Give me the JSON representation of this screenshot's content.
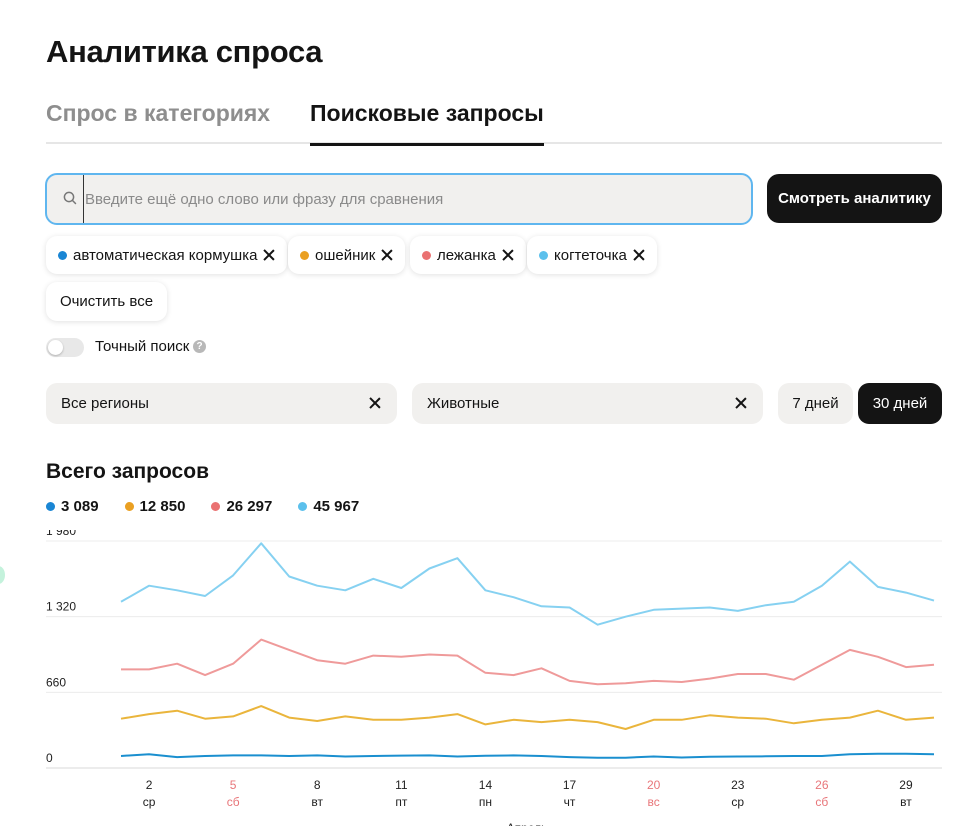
{
  "header": {
    "title": "Аналитика спроса"
  },
  "tabs": [
    {
      "label": "Спрос в категориях",
      "active": false
    },
    {
      "label": "Поисковые запросы",
      "active": true
    }
  ],
  "search": {
    "placeholder": "Введите ещё одно слово или фразу для сравнения",
    "value": "",
    "button_label": "Смотреть аналитику",
    "icon": "search-icon"
  },
  "chips": [
    {
      "label": "автоматическая кормушка",
      "color": "#1a86d4"
    },
    {
      "label": "ошейник",
      "color": "#eaa022"
    },
    {
      "label": "лежанка",
      "color": "#ea7272"
    },
    {
      "label": "когтеточка",
      "color": "#5cc0ec"
    }
  ],
  "clear_label": "Очистить все",
  "exact_search": {
    "label": "Точный поиск",
    "enabled": false,
    "help": "?"
  },
  "filters": {
    "region": "Все регионы",
    "category": "Животные"
  },
  "periods": [
    {
      "label": "7 дней",
      "active": false
    },
    {
      "label": "30 дней",
      "active": true
    }
  ],
  "totals": {
    "title": "Всего запросов",
    "items": [
      {
        "value": "3 089",
        "color": "#1a86d4"
      },
      {
        "value": "12 850",
        "color": "#eaa022"
      },
      {
        "value": "26 297",
        "color": "#ea7272"
      },
      {
        "value": "45 967",
        "color": "#5cc0ec"
      }
    ]
  },
  "chart_data": {
    "type": "line",
    "ylim": [
      0,
      1980
    ],
    "yticks": [
      "1 980",
      "1 320",
      "660",
      "0"
    ],
    "ytick_values": [
      1980,
      1320,
      660,
      0
    ],
    "x": [
      "1",
      "2",
      "3",
      "4",
      "5",
      "6",
      "7",
      "8",
      "9",
      "10",
      "11",
      "12",
      "13",
      "14",
      "15",
      "16",
      "17",
      "18",
      "19",
      "20",
      "21",
      "22",
      "23",
      "24",
      "25",
      "26",
      "27",
      "28",
      "29",
      "30"
    ],
    "xticks": [
      {
        "day": "2",
        "weekday": "ср",
        "weekend": false
      },
      {
        "day": "5",
        "weekday": "сб",
        "weekend": true
      },
      {
        "day": "8",
        "weekday": "вт",
        "weekend": false
      },
      {
        "day": "11",
        "weekday": "пт",
        "weekend": false
      },
      {
        "day": "14",
        "weekday": "пн",
        "weekend": false
      },
      {
        "day": "17",
        "weekday": "чт",
        "weekend": false
      },
      {
        "day": "20",
        "weekday": "вс",
        "weekend": true
      },
      {
        "day": "23",
        "weekday": "ср",
        "weekend": false
      },
      {
        "day": "26",
        "weekday": "сб",
        "weekend": true
      },
      {
        "day": "29",
        "weekday": "вт",
        "weekend": false
      }
    ],
    "xlabel": "Апрель",
    "weekend_color": "#e8767a",
    "grid": true,
    "series": [
      {
        "name": "когтеточка",
        "color": "#86d1f1",
        "values": [
          1450,
          1590,
          1550,
          1500,
          1680,
          1960,
          1670,
          1590,
          1550,
          1650,
          1570,
          1740,
          1830,
          1550,
          1490,
          1410,
          1400,
          1250,
          1320,
          1380,
          1390,
          1400,
          1370,
          1420,
          1450,
          1590,
          1800,
          1580,
          1530,
          1460
        ]
      },
      {
        "name": "лежанка",
        "color": "#ef9a9a",
        "values": [
          860,
          860,
          910,
          810,
          910,
          1120,
          1030,
          940,
          910,
          980,
          970,
          990,
          980,
          830,
          810,
          870,
          760,
          730,
          740,
          760,
          750,
          780,
          820,
          820,
          770,
          900,
          1030,
          970,
          880,
          900
        ]
      },
      {
        "name": "ошейник",
        "color": "#eab53c",
        "values": [
          430,
          470,
          500,
          430,
          450,
          540,
          440,
          410,
          450,
          420,
          420,
          440,
          470,
          380,
          420,
          400,
          420,
          400,
          340,
          420,
          420,
          460,
          440,
          430,
          390,
          420,
          440,
          500,
          420,
          440
        ]
      },
      {
        "name": "автоматическая кормушка",
        "color": "#1a8fcf",
        "values": [
          105,
          120,
          95,
          105,
          110,
          110,
          105,
          110,
          100,
          105,
          108,
          110,
          100,
          107,
          110,
          105,
          95,
          90,
          90,
          100,
          92,
          98,
          100,
          102,
          105,
          105,
          120,
          125,
          125,
          120
        ]
      }
    ]
  }
}
